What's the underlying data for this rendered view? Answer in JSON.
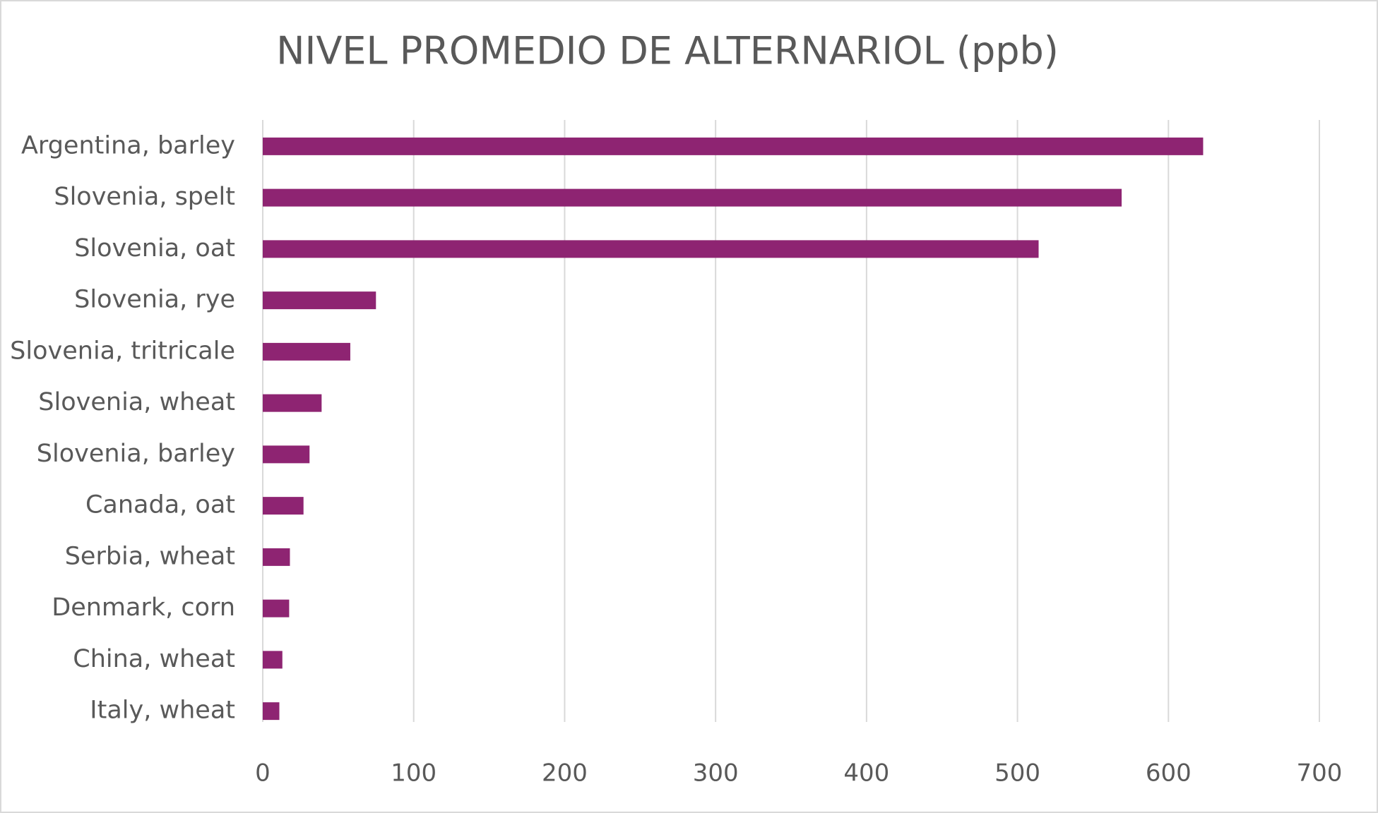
{
  "chart_data": {
    "type": "bar",
    "orientation": "horizontal",
    "title": "NIVEL PROMEDIO DE ALTERNARIOL (ppb)",
    "categories": [
      "Argentina, barley",
      "Slovenia, spelt",
      "Slovenia, oat",
      "Slovenia, rye",
      "Slovenia, tritricale",
      "Slovenia, wheat",
      "Slovenia, barley",
      "Canada, oat",
      "Serbia, wheat",
      "Denmark, corn",
      "China, wheat",
      "Italy, wheat"
    ],
    "values": [
      623,
      569,
      514,
      75,
      58,
      39,
      31,
      27,
      18,
      17.5,
      13,
      11
    ],
    "color": "#8e2472",
    "xlim": [
      0,
      700
    ],
    "xticks": [
      0,
      100,
      200,
      300,
      400,
      500,
      600,
      700
    ],
    "grid": true
  }
}
